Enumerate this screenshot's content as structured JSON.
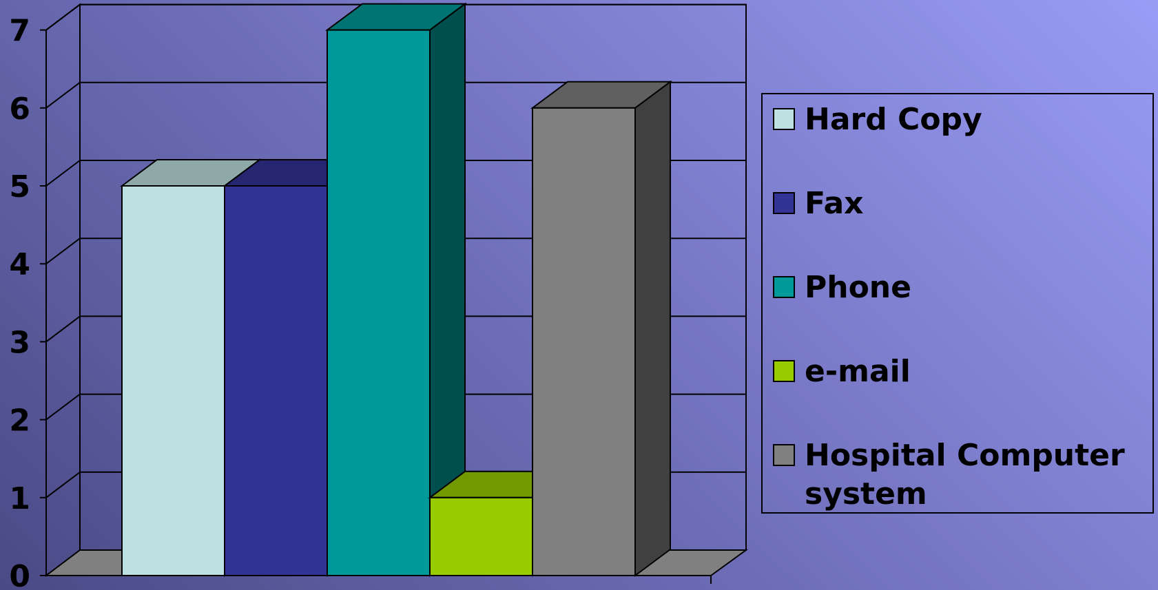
{
  "chart_data": {
    "type": "bar",
    "categories": [
      ""
    ],
    "series": [
      {
        "name": "Hard Copy",
        "values": [
          5
        ],
        "color": "#bde0e2",
        "top": "#8fa9a9",
        "side": "#8fa9a9"
      },
      {
        "name": "Fax",
        "values": [
          5
        ],
        "color": "#333396",
        "top": "#262670",
        "side": "#262670"
      },
      {
        "name": "Phone",
        "values": [
          7
        ],
        "color": "#009999",
        "top": "#007373",
        "side": "#004f4f"
      },
      {
        "name": "e-mail",
        "values": [
          1
        ],
        "color": "#99cc00",
        "top": "#739900",
        "side": "#5c7a00"
      },
      {
        "name": "Hospital Computer system",
        "values": [
          6
        ],
        "color": "#808080",
        "top": "#606060",
        "side": "#404040"
      }
    ],
    "ylim": [
      0,
      7
    ],
    "yticks": [
      "0",
      "1",
      "2",
      "3",
      "4",
      "5",
      "6",
      "7"
    ],
    "grid": true,
    "legend": "right",
    "xlabel": "",
    "ylabel": "",
    "title": ""
  }
}
